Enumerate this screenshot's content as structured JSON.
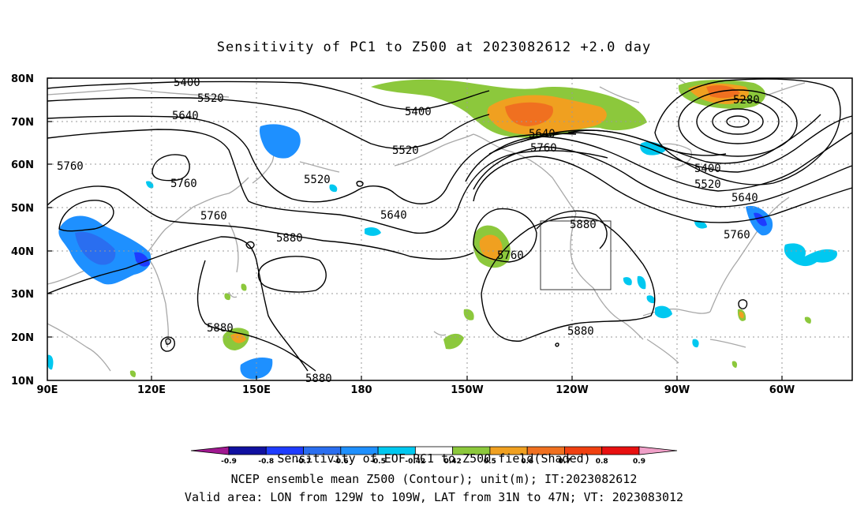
{
  "title": "Sensitivity of PC1 to Z500 at 2023082612 +2.0 day",
  "lat_labels": [
    "80N",
    "70N",
    "60N",
    "50N",
    "40N",
    "30N",
    "20N",
    "10N"
  ],
  "lon_labels": [
    "90E",
    "120E",
    "150E",
    "180",
    "150W",
    "120W",
    "90W",
    "60W"
  ],
  "contour_labels": {
    "c5400_a": "5400",
    "c5520_a": "5520",
    "c5640_a": "5640",
    "c5760_a": "5760",
    "c5760_b": "5760",
    "c5760_c": "5760",
    "c5880_a": "5880",
    "c5880_b": "5880",
    "c5880_c": "5880",
    "c5400_b": "5400",
    "c5520_b": "5520",
    "c5520_c": "5520",
    "c5640_b": "5640",
    "c5640_c": "5640",
    "c5760_d": "5760",
    "c5760_e": "5760",
    "c5880_d": "5880",
    "c5880_e": "5880",
    "c5280": "5280",
    "c5400_c": "5400",
    "c5520_d": "5520",
    "c5640_d": "5640",
    "c5760_f": "5760"
  },
  "colorbar": {
    "ticks": [
      "-0.9",
      "-0.8",
      "-0.7",
      "-0.6",
      "-0.5",
      "-0.42",
      "0.42",
      "0.5",
      "0.6",
      "0.7",
      "0.8",
      "0.9"
    ],
    "colors": [
      "#a01890",
      "#1010a0",
      "#1e3cff",
      "#2a6ef0",
      "#1e90ff",
      "#00c8f0",
      "#ffffff",
      "#8cc83c",
      "#f0a020",
      "#f07020",
      "#f04010",
      "#e81010",
      "#f0a0c8"
    ]
  },
  "captions": {
    "line1": "Sensitivity of EOF PC1 to Z500 field(Shaded)",
    "line2": "NCEP ensemble mean Z500 (Contour); unit(m); IT:2023082612",
    "line3": "Valid area: LON from 129W to 109W, LAT from 31N to 47N; VT: 2023083012"
  },
  "valid_area": {
    "lon_from": "129W",
    "lon_to": "109W",
    "lat_from": "31N",
    "lat_to": "47N"
  }
}
